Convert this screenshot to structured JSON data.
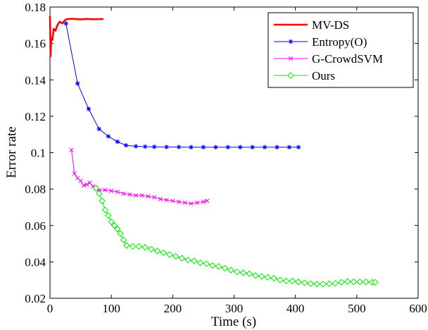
{
  "chart_data": {
    "type": "line",
    "xlabel": "Time (s)",
    "ylabel": "Error rate",
    "xlim": [
      0,
      600
    ],
    "ylim": [
      0.02,
      0.18
    ],
    "x_ticks": [
      0,
      100,
      200,
      300,
      400,
      500,
      600
    ],
    "y_ticks": [
      0.02,
      0.04,
      0.06,
      0.08,
      0.1,
      0.12,
      0.14,
      0.16,
      0.18
    ],
    "y_tick_labels": [
      "0.02",
      "0.04",
      "0.06",
      "0.08",
      "0.1",
      "0.12",
      "0.14",
      "0.16",
      "0.18"
    ],
    "grid": false,
    "legend_position": "top-right",
    "series": [
      {
        "name": "MV-DS",
        "color": "#ff0000",
        "marker": "none",
        "points": [
          [
            0,
            0.175
          ],
          [
            1,
            0.153
          ],
          [
            2,
            0.163
          ],
          [
            4,
            0.162
          ],
          [
            6,
            0.168
          ],
          [
            9,
            0.167
          ],
          [
            12,
            0.17
          ],
          [
            16,
            0.172
          ],
          [
            20,
            0.171
          ],
          [
            25,
            0.173
          ],
          [
            30,
            0.1735
          ],
          [
            40,
            0.1735
          ],
          [
            50,
            0.1732
          ],
          [
            60,
            0.1735
          ],
          [
            70,
            0.1733
          ],
          [
            80,
            0.1734
          ],
          [
            87,
            0.1734
          ]
        ]
      },
      {
        "name": "Entropy(O)",
        "color": "#0000ff",
        "marker": "star",
        "points": [
          [
            26,
            0.171
          ],
          [
            45,
            0.138
          ],
          [
            63,
            0.124
          ],
          [
            80,
            0.113
          ],
          [
            95,
            0.109
          ],
          [
            110,
            0.106
          ],
          [
            124,
            0.104
          ],
          [
            140,
            0.1035
          ],
          [
            155,
            0.1033
          ],
          [
            170,
            0.1032
          ],
          [
            190,
            0.1031
          ],
          [
            210,
            0.1031
          ],
          [
            230,
            0.103
          ],
          [
            250,
            0.103
          ],
          [
            270,
            0.103
          ],
          [
            290,
            0.103
          ],
          [
            310,
            0.103
          ],
          [
            330,
            0.103
          ],
          [
            350,
            0.103
          ],
          [
            370,
            0.103
          ],
          [
            390,
            0.103
          ],
          [
            405,
            0.103
          ]
        ]
      },
      {
        "name": "G-CrowdSVM",
        "color": "#ff00ff",
        "marker": "x",
        "points": [
          [
            35,
            0.1015
          ],
          [
            40,
            0.0885
          ],
          [
            45,
            0.086
          ],
          [
            50,
            0.0845
          ],
          [
            55,
            0.082
          ],
          [
            60,
            0.0825
          ],
          [
            65,
            0.0835
          ],
          [
            70,
            0.0815
          ],
          [
            75,
            0.0805
          ],
          [
            80,
            0.0795
          ],
          [
            90,
            0.0795
          ],
          [
            100,
            0.079
          ],
          [
            110,
            0.0785
          ],
          [
            120,
            0.0775
          ],
          [
            130,
            0.077
          ],
          [
            140,
            0.0765
          ],
          [
            150,
            0.0765
          ],
          [
            160,
            0.076
          ],
          [
            170,
            0.0755
          ],
          [
            180,
            0.0745
          ],
          [
            190,
            0.074
          ],
          [
            200,
            0.0735
          ],
          [
            210,
            0.073
          ],
          [
            220,
            0.0725
          ],
          [
            230,
            0.072
          ],
          [
            240,
            0.0725
          ],
          [
            250,
            0.073
          ],
          [
            256,
            0.0735
          ]
        ]
      },
      {
        "name": "Ours",
        "color": "#00ee00",
        "marker": "diamond",
        "points": [
          [
            75,
            0.0805
          ],
          [
            80,
            0.0775
          ],
          [
            85,
            0.0735
          ],
          [
            90,
            0.0685
          ],
          [
            95,
            0.0655
          ],
          [
            100,
            0.062
          ],
          [
            105,
            0.06
          ],
          [
            110,
            0.058
          ],
          [
            115,
            0.0555
          ],
          [
            120,
            0.052
          ],
          [
            125,
            0.049
          ],
          [
            135,
            0.0485
          ],
          [
            145,
            0.0485
          ],
          [
            155,
            0.048
          ],
          [
            165,
            0.047
          ],
          [
            175,
            0.046
          ],
          [
            185,
            0.045
          ],
          [
            195,
            0.044
          ],
          [
            205,
            0.043
          ],
          [
            215,
            0.042
          ],
          [
            225,
            0.041
          ],
          [
            235,
            0.0405
          ],
          [
            245,
            0.0395
          ],
          [
            255,
            0.039
          ],
          [
            265,
            0.038
          ],
          [
            275,
            0.0375
          ],
          [
            285,
            0.0365
          ],
          [
            295,
            0.0355
          ],
          [
            305,
            0.0345
          ],
          [
            315,
            0.034
          ],
          [
            325,
            0.0335
          ],
          [
            335,
            0.0325
          ],
          [
            345,
            0.032
          ],
          [
            355,
            0.0315
          ],
          [
            365,
            0.031
          ],
          [
            375,
            0.03
          ],
          [
            385,
            0.0295
          ],
          [
            395,
            0.0295
          ],
          [
            405,
            0.029
          ],
          [
            415,
            0.0285
          ],
          [
            425,
            0.028
          ],
          [
            435,
            0.0278
          ],
          [
            445,
            0.0278
          ],
          [
            455,
            0.028
          ],
          [
            465,
            0.0282
          ],
          [
            475,
            0.0288
          ],
          [
            485,
            0.0292
          ],
          [
            495,
            0.029
          ],
          [
            505,
            0.029
          ],
          [
            515,
            0.029
          ],
          [
            525,
            0.0288
          ],
          [
            530,
            0.0288
          ]
        ]
      }
    ]
  }
}
